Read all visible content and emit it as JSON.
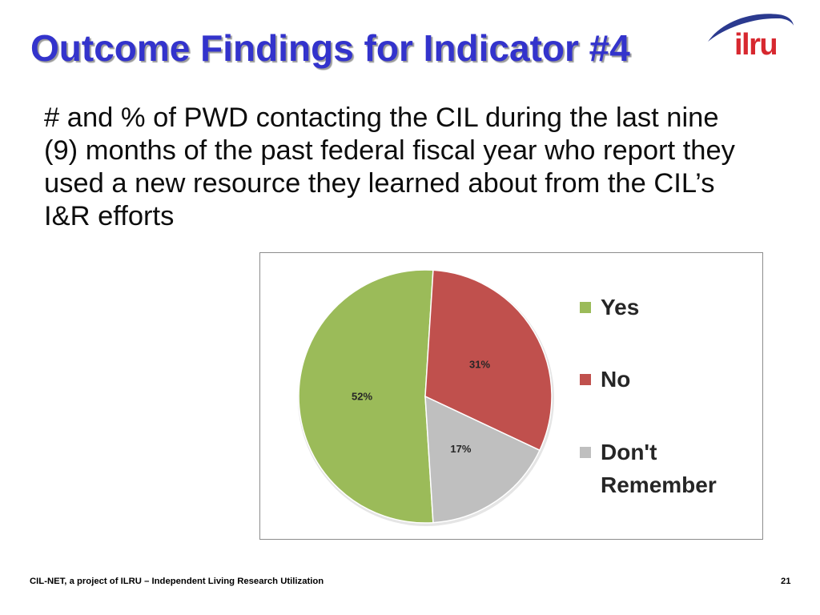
{
  "slide": {
    "title": "Outcome Findings for Indicator #4",
    "body_lines": [
      "# and % of PWD contacting the CIL during the last nine",
      "(9) months of the past federal fiscal year who report they",
      "used a new resource they learned about from the CIL’s",
      "I&R efforts"
    ],
    "footer": "CIL-NET, a project of ILRU – Independent Living Research Utilization",
    "page_number": "21"
  },
  "logo": {
    "text": "ilru",
    "icon": "ilru-swoosh-icon"
  },
  "colors": {
    "title": "#3333CC",
    "logo_text": "#D7282F",
    "logo_swoosh": "#2B3A8F",
    "body_text": "#0D0D0D"
  },
  "chart_data": {
    "type": "pie",
    "categories": [
      "Yes",
      "No",
      "Don't Remember"
    ],
    "values": [
      52,
      31,
      17
    ],
    "data_labels": [
      "52%",
      "31%",
      "17%"
    ],
    "colors": [
      "#9BBB59",
      "#C0504D",
      "#BFBFBF"
    ],
    "legend_position": "right"
  }
}
